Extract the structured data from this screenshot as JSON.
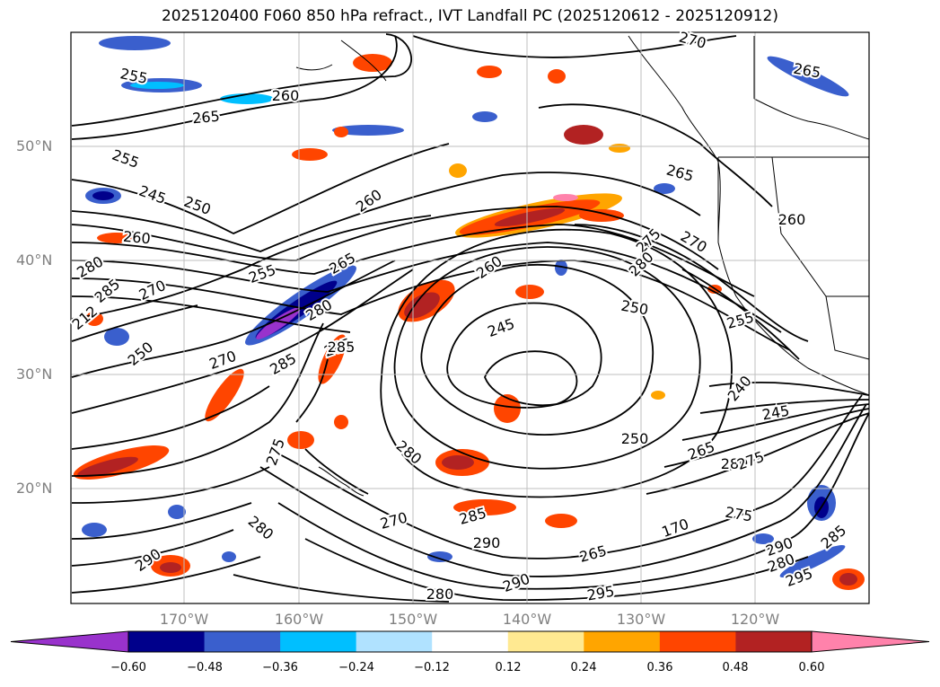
{
  "title": "2025120400 F060 850 hPa refract., IVT Landfall PC (2025120612 - 2025120912)",
  "lat_labels": [
    "50°N",
    "40°N",
    "30°N",
    "20°N"
  ],
  "lon_labels": [
    "170°W",
    "160°W",
    "150°W",
    "140°W",
    "130°W",
    "120°W"
  ],
  "colorbar": {
    "ticks": [
      "−0.60",
      "−0.48",
      "−0.36",
      "−0.24",
      "−0.12",
      "0.12",
      "0.24",
      "0.36",
      "0.48",
      "0.60"
    ],
    "colors": [
      "#9932cc",
      "#00008b",
      "#3a5fcd",
      "#00bfff",
      "#b0e2ff",
      "#ffffff",
      "#ffe991",
      "#ffa500",
      "#ff4500",
      "#b22222",
      "#ff82ab"
    ]
  },
  "contour_labels": [
    "270",
    "265",
    "255",
    "260",
    "265",
    "255",
    "245",
    "250",
    "260",
    "280",
    "285",
    "270",
    "212",
    "250",
    "270",
    "285",
    "255",
    "265",
    "280",
    "285",
    "260",
    "260",
    "245",
    "275",
    "280",
    "250",
    "255",
    "265",
    "270",
    "260",
    "240",
    "245",
    "250",
    "265",
    "280",
    "275",
    "275",
    "280",
    "270",
    "285",
    "290",
    "285",
    "265",
    "170",
    "280",
    "290",
    "275",
    "290",
    "295",
    "290",
    "285",
    "295",
    "280",
    "280"
  ]
}
